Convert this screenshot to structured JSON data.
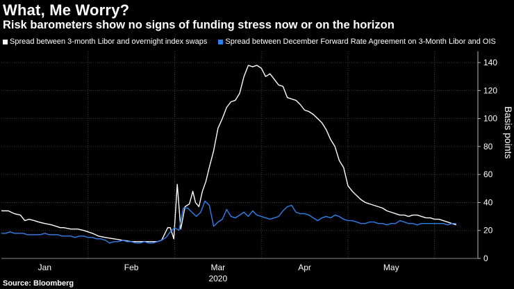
{
  "chart_data": {
    "type": "line",
    "title": "What, Me Worry?",
    "subtitle": "Risk barometers show no signs of funding stress now or on the horizon",
    "ylabel": "Basis points",
    "ylim": [
      0,
      145
    ],
    "yticks": [
      0,
      20,
      40,
      60,
      80,
      100,
      120,
      140
    ],
    "grid": true,
    "legend_position": "top-left",
    "x_range": [
      0,
      5.5
    ],
    "x_ticks": [
      {
        "label": "Jan",
        "x": 0.5
      },
      {
        "label": "Feb",
        "x": 1.5
      },
      {
        "label": "Mar",
        "x": 2.5
      },
      {
        "label": "Apr",
        "x": 3.5
      },
      {
        "label": "May",
        "x": 4.5
      }
    ],
    "x_year_label": {
      "label": "2020",
      "x": 2.5
    },
    "month_separators": [
      1,
      2,
      3,
      4,
      5
    ],
    "series": [
      {
        "name": "Spread between 3-month Libor and overnight index swaps",
        "color": "#ffffff",
        "x": [
          0.0,
          0.08,
          0.15,
          0.22,
          0.27,
          0.32,
          0.38,
          0.43,
          0.5,
          0.58,
          0.63,
          0.68,
          0.72,
          0.8,
          0.88,
          0.95,
          1.05,
          1.12,
          1.2,
          1.3,
          1.4,
          1.5,
          1.6,
          1.7,
          1.8,
          1.85,
          1.92,
          1.95,
          1.99,
          2.03,
          2.07,
          2.12,
          2.17,
          2.21,
          2.24,
          2.28,
          2.32,
          2.36,
          2.4,
          2.45,
          2.5,
          2.55,
          2.6,
          2.65,
          2.7,
          2.75,
          2.8,
          2.85,
          2.9,
          2.95,
          3.0,
          3.05,
          3.1,
          3.15,
          3.2,
          3.25,
          3.3,
          3.35,
          3.4,
          3.45,
          3.5,
          3.55,
          3.6,
          3.65,
          3.7,
          3.75,
          3.8,
          3.85,
          3.9,
          3.95,
          4.0,
          4.05,
          4.1,
          4.15,
          4.2,
          4.25,
          4.3,
          4.35,
          4.4,
          4.45,
          4.5,
          4.55,
          4.6,
          4.65,
          4.7,
          4.75,
          4.8,
          4.85,
          4.9,
          4.95,
          5.0,
          5.05,
          5.1,
          5.15,
          5.2,
          5.25
        ],
        "values": [
          34,
          34,
          32,
          31,
          27,
          28,
          27,
          26,
          25,
          24,
          23,
          22,
          22,
          21,
          21,
          20,
          18,
          16,
          15,
          14,
          13,
          12,
          12,
          12,
          12,
          13,
          22,
          22,
          14,
          53,
          21,
          37,
          39,
          48,
          40,
          37,
          48,
          55,
          65,
          77,
          93,
          100,
          108,
          112,
          113,
          118,
          130,
          138,
          137,
          138,
          136,
          130,
          132,
          128,
          124,
          123,
          115,
          114,
          113,
          110,
          106,
          105,
          103,
          100,
          97,
          92,
          85,
          80,
          70,
          65,
          52,
          48,
          45,
          42,
          40,
          39,
          38,
          37,
          36,
          34,
          33,
          32,
          31,
          31,
          30,
          31,
          31,
          30,
          29,
          29,
          28,
          28,
          27,
          26,
          25,
          24
        ]
      },
      {
        "name": "Spread between December Forward Rate Agreement on 3-Month Libor and OIS",
        "color": "#2f80ed",
        "x": [
          0.0,
          0.05,
          0.1,
          0.15,
          0.2,
          0.25,
          0.3,
          0.35,
          0.4,
          0.45,
          0.5,
          0.55,
          0.6,
          0.65,
          0.7,
          0.75,
          0.8,
          0.85,
          0.9,
          0.95,
          1.0,
          1.05,
          1.1,
          1.15,
          1.2,
          1.25,
          1.3,
          1.35,
          1.4,
          1.45,
          1.5,
          1.55,
          1.6,
          1.65,
          1.7,
          1.75,
          1.8,
          1.85,
          1.9,
          1.95,
          2.0,
          2.05,
          2.1,
          2.15,
          2.2,
          2.25,
          2.3,
          2.35,
          2.4,
          2.45,
          2.5,
          2.55,
          2.6,
          2.65,
          2.7,
          2.75,
          2.8,
          2.85,
          2.9,
          2.95,
          3.0,
          3.05,
          3.1,
          3.15,
          3.2,
          3.25,
          3.3,
          3.35,
          3.4,
          3.45,
          3.5,
          3.55,
          3.6,
          3.65,
          3.7,
          3.75,
          3.8,
          3.85,
          3.9,
          3.95,
          4.0,
          4.05,
          4.1,
          4.15,
          4.2,
          4.25,
          4.3,
          4.35,
          4.4,
          4.45,
          4.5,
          4.55,
          4.6,
          4.65,
          4.7,
          4.75,
          4.8,
          4.85,
          4.9,
          4.95,
          5.0,
          5.05,
          5.1,
          5.15,
          5.2,
          5.25
        ],
        "values": [
          18,
          18,
          19,
          18,
          18,
          18,
          17,
          17,
          17,
          17,
          18,
          17,
          17,
          17,
          16,
          16,
          16,
          15,
          16,
          16,
          15,
          15,
          14,
          14,
          13,
          11,
          12,
          12,
          13,
          12,
          12,
          11,
          11,
          12,
          11,
          11,
          12,
          13,
          15,
          19,
          22,
          20,
          36,
          36,
          33,
          30,
          33,
          41,
          38,
          23,
          26,
          28,
          35,
          30,
          29,
          31,
          33,
          30,
          34,
          31,
          30,
          29,
          28,
          29,
          30,
          34,
          37,
          38,
          33,
          32,
          32,
          31,
          29,
          27,
          29,
          30,
          29,
          31,
          30,
          28,
          27,
          27,
          26,
          25,
          25,
          26,
          26,
          25,
          25,
          24,
          25,
          25,
          27,
          26,
          25,
          25,
          24,
          25,
          25,
          25,
          25,
          25,
          25,
          24,
          25,
          25
        ]
      }
    ]
  },
  "source": "Source: Bloomberg"
}
